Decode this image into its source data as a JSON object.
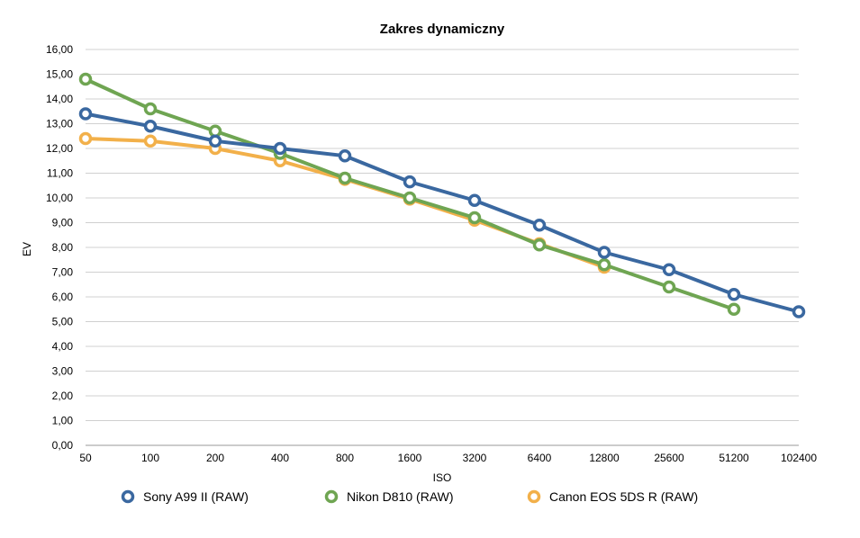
{
  "chart_data": {
    "type": "line",
    "title": "Zakres dynamiczny",
    "xlabel": "ISO",
    "ylabel": "EV",
    "categories": [
      "50",
      "100",
      "200",
      "400",
      "800",
      "1600",
      "3200",
      "6400",
      "12800",
      "25600",
      "51200",
      "102400"
    ],
    "y_ticks": [
      "0,00",
      "1,00",
      "2,00",
      "3,00",
      "4,00",
      "5,00",
      "6,00",
      "7,00",
      "8,00",
      "9,00",
      "10,00",
      "11,00",
      "12,00",
      "13,00",
      "14,00",
      "15,00",
      "16,00"
    ],
    "ylim": [
      0,
      16
    ],
    "grid": true,
    "legend_position": "bottom",
    "series": [
      {
        "name": "Sony A99 II (RAW)",
        "color": "#3a68a0",
        "values": [
          13.4,
          12.9,
          12.3,
          12.0,
          11.7,
          10.65,
          9.9,
          8.9,
          7.8,
          7.1,
          6.1,
          5.4
        ]
      },
      {
        "name": "Nikon D810 (RAW)",
        "color": "#6fa552",
        "values": [
          14.8,
          13.6,
          12.7,
          11.8,
          10.8,
          10.0,
          9.2,
          8.1,
          7.3,
          6.4,
          5.5,
          null
        ]
      },
      {
        "name": "Canon EOS 5DS R (RAW)",
        "color": "#f2b04a",
        "values": [
          12.4,
          12.3,
          12.0,
          11.5,
          10.75,
          9.95,
          9.1,
          8.15,
          7.2,
          null,
          null,
          null
        ]
      }
    ]
  }
}
